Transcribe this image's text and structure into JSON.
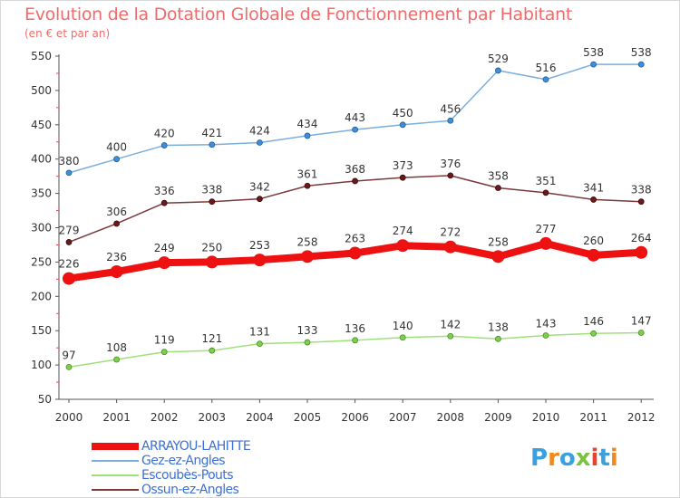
{
  "title": "Evolution de la Dotation Globale de Fonctionnement par Habitant",
  "subtitle": "(en € et par an)",
  "logo": {
    "text": "Proxiti",
    "colors": [
      "#3aa0e0",
      "#f08a1c",
      "#3aa0e0",
      "#7cc242",
      "#e8432e",
      "#3aa0e0",
      "#f08a1c"
    ]
  },
  "chart_data": {
    "type": "line",
    "title": "Evolution de la Dotation Globale de Fonctionnement par Habitant",
    "subtitle": "(en € et par an)",
    "xlabel": "",
    "ylabel": "",
    "ylim": [
      50,
      550
    ],
    "yticks": [
      50,
      100,
      150,
      200,
      250,
      300,
      350,
      400,
      450,
      500,
      550
    ],
    "grid": false,
    "categories": [
      "2000",
      "2001",
      "2002",
      "2003",
      "2004",
      "2005",
      "2006",
      "2007",
      "2008",
      "2009",
      "2010",
      "2011",
      "2012"
    ],
    "series": [
      {
        "name": "ARRAYOU-LAHITTE",
        "color": "#ee1111",
        "values": [
          226,
          236,
          249,
          250,
          253,
          258,
          263,
          274,
          272,
          258,
          277,
          260,
          264
        ]
      },
      {
        "name": "Gez-ez-Angles",
        "color": "#7aaedc",
        "values": [
          380,
          400,
          420,
          421,
          424,
          434,
          443,
          450,
          456,
          529,
          516,
          538,
          538
        ]
      },
      {
        "name": "Escoubès-Pouts",
        "color": "#9ee07a",
        "values": [
          97,
          108,
          119,
          121,
          131,
          133,
          136,
          140,
          142,
          138,
          143,
          146,
          147
        ]
      },
      {
        "name": "Ossun-ez-Angles",
        "color": "#7a3a3a",
        "values": [
          279,
          306,
          336,
          338,
          342,
          361,
          368,
          373,
          376,
          358,
          351,
          341,
          338
        ]
      }
    ]
  }
}
